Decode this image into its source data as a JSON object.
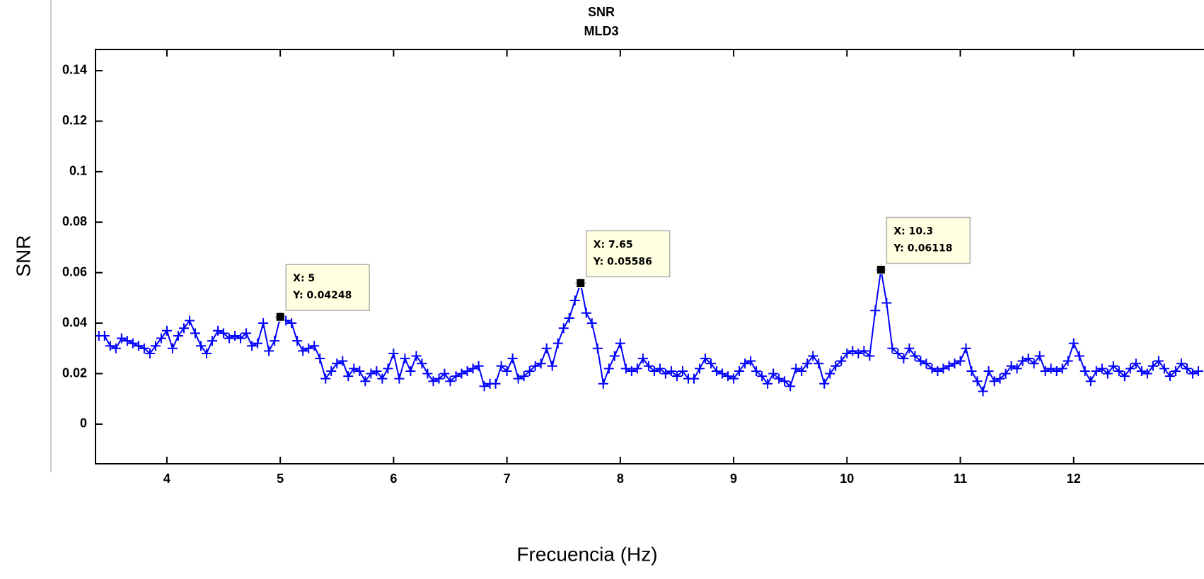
{
  "chart_data": {
    "type": "line",
    "title": "SNR",
    "subtitle": "MLD3",
    "x_label": "Frecuencia (Hz)",
    "y_label": "SNR",
    "xlim": [
      3.37,
      13.15
    ],
    "ylim": [
      -0.0157,
      0.1484
    ],
    "xticks": [
      4,
      5,
      6,
      7,
      8,
      9,
      10,
      11,
      12
    ],
    "yticks": [
      0,
      0.02,
      0.04,
      0.06,
      0.08,
      0.1,
      0.12,
      0.14
    ],
    "x": [
      3.4,
      3.45,
      3.5,
      3.55,
      3.6,
      3.65,
      3.7,
      3.75,
      3.8,
      3.85,
      3.9,
      3.95,
      4.0,
      4.05,
      4.1,
      4.15,
      4.2,
      4.25,
      4.3,
      4.35,
      4.4,
      4.45,
      4.5,
      4.55,
      4.6,
      4.65,
      4.7,
      4.75,
      4.8,
      4.85,
      4.9,
      4.95,
      5.0,
      5.05,
      5.1,
      5.15,
      5.2,
      5.25,
      5.3,
      5.35,
      5.4,
      5.45,
      5.5,
      5.55,
      5.6,
      5.65,
      5.7,
      5.75,
      5.8,
      5.85,
      5.9,
      5.95,
      6.0,
      6.05,
      6.1,
      6.15,
      6.2,
      6.25,
      6.3,
      6.35,
      6.4,
      6.45,
      6.5,
      6.55,
      6.6,
      6.65,
      6.7,
      6.75,
      6.8,
      6.85,
      6.9,
      6.95,
      7.0,
      7.05,
      7.1,
      7.15,
      7.2,
      7.25,
      7.3,
      7.35,
      7.4,
      7.45,
      7.5,
      7.55,
      7.6,
      7.65,
      7.7,
      7.75,
      7.8,
      7.85,
      7.9,
      7.95,
      8.0,
      8.05,
      8.1,
      8.15,
      8.2,
      8.25,
      8.3,
      8.35,
      8.4,
      8.45,
      8.5,
      8.55,
      8.6,
      8.65,
      8.7,
      8.75,
      8.8,
      8.85,
      8.9,
      8.95,
      9.0,
      9.05,
      9.1,
      9.15,
      9.2,
      9.25,
      9.3,
      9.35,
      9.4,
      9.45,
      9.5,
      9.55,
      9.6,
      9.65,
      9.7,
      9.75,
      9.8,
      9.85,
      9.9,
      9.95,
      10.0,
      10.05,
      10.1,
      10.15,
      10.2,
      10.25,
      10.3,
      10.35,
      10.4,
      10.45,
      10.5,
      10.55,
      10.6,
      10.65,
      10.7,
      10.75,
      10.8,
      10.85,
      10.9,
      10.95,
      11.0,
      11.05,
      11.1,
      11.15,
      11.2,
      11.25,
      11.3,
      11.35,
      11.4,
      11.45,
      11.5,
      11.55,
      11.6,
      11.65,
      11.7,
      11.75,
      11.8,
      11.85,
      11.9,
      11.95,
      12.0,
      12.05,
      12.1,
      12.15,
      12.2,
      12.25,
      12.3,
      12.35,
      12.4,
      12.45,
      12.5,
      12.55,
      12.6,
      12.65,
      12.7,
      12.75,
      12.8,
      12.85,
      12.9,
      12.95,
      13.0,
      13.05,
      13.1
    ],
    "series": [
      {
        "color": "#0000ff",
        "values": [
          0.035,
          0.035,
          0.031,
          0.03,
          0.034,
          0.033,
          0.032,
          0.031,
          0.03,
          0.028,
          0.031,
          0.034,
          0.037,
          0.03,
          0.035,
          0.038,
          0.041,
          0.036,
          0.031,
          0.028,
          0.033,
          0.037,
          0.036,
          0.034,
          0.035,
          0.034,
          0.036,
          0.031,
          0.032,
          0.04,
          0.029,
          0.033,
          0.04248,
          0.041,
          0.04,
          0.033,
          0.029,
          0.03,
          0.031,
          0.026,
          0.018,
          0.021,
          0.024,
          0.025,
          0.019,
          0.022,
          0.021,
          0.017,
          0.02,
          0.021,
          0.018,
          0.022,
          0.028,
          0.018,
          0.026,
          0.021,
          0.027,
          0.024,
          0.02,
          0.017,
          0.018,
          0.02,
          0.017,
          0.019,
          0.02,
          0.021,
          0.022,
          0.023,
          0.015,
          0.016,
          0.016,
          0.023,
          0.021,
          0.026,
          0.018,
          0.019,
          0.021,
          0.023,
          0.024,
          0.03,
          0.023,
          0.032,
          0.038,
          0.042,
          0.049,
          0.05586,
          0.044,
          0.04,
          0.03,
          0.016,
          0.022,
          0.027,
          0.032,
          0.022,
          0.021,
          0.022,
          0.026,
          0.023,
          0.021,
          0.022,
          0.02,
          0.021,
          0.019,
          0.021,
          0.018,
          0.018,
          0.022,
          0.026,
          0.024,
          0.021,
          0.02,
          0.019,
          0.018,
          0.021,
          0.024,
          0.025,
          0.021,
          0.019,
          0.016,
          0.02,
          0.018,
          0.017,
          0.015,
          0.022,
          0.021,
          0.024,
          0.027,
          0.024,
          0.016,
          0.02,
          0.023,
          0.025,
          0.028,
          0.029,
          0.028,
          0.029,
          0.027,
          0.045,
          0.06118,
          0.048,
          0.03,
          0.028,
          0.026,
          0.03,
          0.027,
          0.025,
          0.024,
          0.022,
          0.021,
          0.022,
          0.023,
          0.024,
          0.025,
          0.03,
          0.021,
          0.017,
          0.013,
          0.021,
          0.017,
          0.018,
          0.02,
          0.023,
          0.022,
          0.025,
          0.026,
          0.024,
          0.027,
          0.021,
          0.022,
          0.021,
          0.022,
          0.025,
          0.032,
          0.027,
          0.021,
          0.017,
          0.021,
          0.022,
          0.02,
          0.023,
          0.021,
          0.019,
          0.022,
          0.024,
          0.021,
          0.02,
          0.023,
          0.025,
          0.022,
          0.019,
          0.021,
          0.024,
          0.022,
          0.02,
          0.021
        ]
      }
    ],
    "datatips": [
      {
        "x": 5,
        "y": 0.04248,
        "text": [
          "X: 5",
          "Y: 0.04248"
        ]
      },
      {
        "x": 7.65,
        "y": 0.05586,
        "text": [
          "X: 7.65",
          "Y: 0.05586"
        ]
      },
      {
        "x": 10.3,
        "y": 0.06118,
        "text": [
          "X: 10.3",
          "Y: 0.06118"
        ]
      }
    ]
  }
}
